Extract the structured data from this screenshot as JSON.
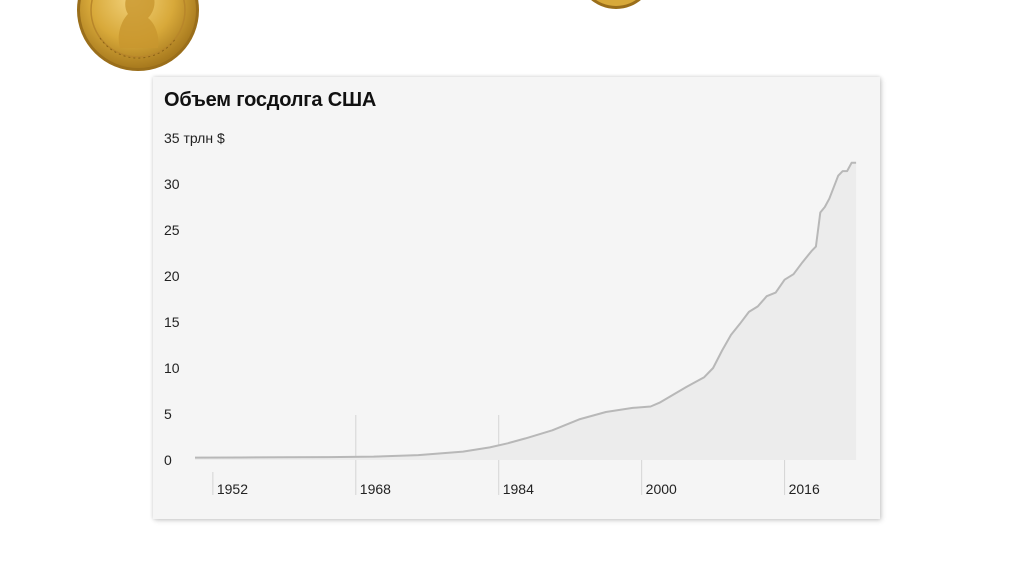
{
  "decorations": {
    "coin_left_icon": "gold-presidential-dollar-coin-icon",
    "coin_right_icon": "gold-coin-edge-icon",
    "coin_color": "#d8a93a"
  },
  "chart_data": {
    "type": "area",
    "title": "Объем госдолга США",
    "unit_label": "35 трлн $",
    "xlabel": "",
    "ylabel": "",
    "xlim": [
      1950,
      2025
    ],
    "ylim": [
      0,
      32
    ],
    "y_ticks": [
      0,
      5,
      10,
      15,
      20,
      25,
      30
    ],
    "y_tick_labels": [
      "0",
      "5",
      "10",
      "15",
      "20",
      "25",
      "30"
    ],
    "x_ticks": [
      1952,
      1968,
      1984,
      2000,
      2016
    ],
    "x_tick_labels": [
      "1952",
      "1968",
      "1984",
      "2000",
      "2016"
    ],
    "grid": "vertical lines at x ticks",
    "legend": "none",
    "colors": {
      "line": "#b8b8b8",
      "fill": "#ececec",
      "card_background": "#f5f5f5",
      "grid": "#d4d4d4"
    },
    "series": [
      {
        "x": [
          1950,
          1955,
          1960,
          1965,
          1970,
          1975,
          1980,
          1983,
          1985,
          1987,
          1990,
          1993,
          1996,
          1999,
          2001,
          2002,
          2005,
          2007,
          2008,
          2009,
          2010,
          2011,
          2012,
          2013,
          2014,
          2015,
          2016,
          2017,
          2018,
          2019,
          2019.5,
          2020,
          2020.5,
          2021,
          2022,
          2022.5,
          2023,
          2023.5,
          2024
        ],
        "y": [
          0.26,
          0.27,
          0.29,
          0.32,
          0.37,
          0.53,
          0.91,
          1.37,
          1.82,
          2.35,
          3.23,
          4.41,
          5.22,
          5.66,
          5.81,
          6.23,
          7.93,
          9.0,
          10.0,
          11.9,
          13.6,
          14.8,
          16.1,
          16.7,
          17.8,
          18.2,
          19.6,
          20.2,
          21.5,
          22.7,
          23.2,
          26.9,
          27.5,
          28.4,
          30.9,
          31.4,
          31.4,
          32.3,
          32.3
        ]
      }
    ]
  }
}
